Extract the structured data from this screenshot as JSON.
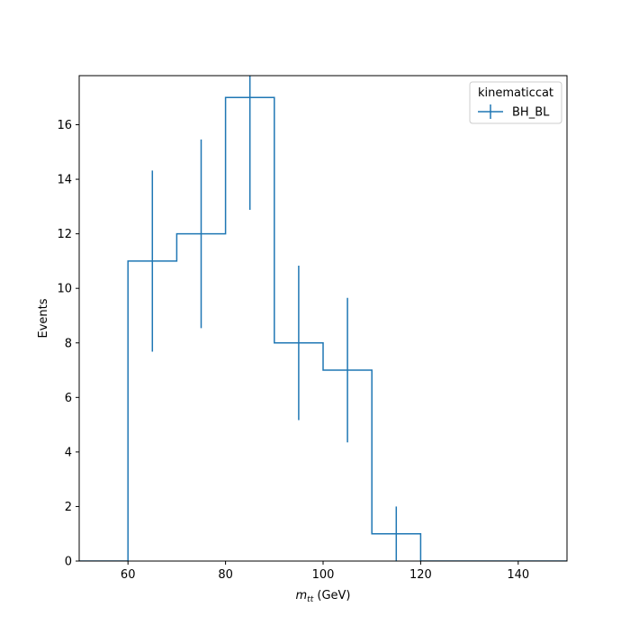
{
  "chart_data": {
    "type": "step",
    "xlabel_main": "m",
    "xlabel_sub": "tt",
    "xlabel_unit": " (GeV)",
    "ylabel": "Events",
    "xlim": [
      50,
      150
    ],
    "ylim": [
      0,
      17.8
    ],
    "xticks": [
      60,
      80,
      100,
      120,
      140
    ],
    "yticks": [
      0,
      2,
      4,
      6,
      8,
      10,
      12,
      14,
      16
    ],
    "grid": false,
    "legend": {
      "title": "kinematiccat",
      "placement": "top-right",
      "entries": [
        "BH_BL"
      ]
    },
    "series": [
      {
        "name": "BH_BL",
        "color": "#1f77b4",
        "bin_edges": [
          50,
          60,
          70,
          80,
          90,
          100,
          110,
          120,
          130,
          140,
          150
        ],
        "values": [
          0,
          11,
          12,
          17,
          8,
          7,
          1,
          0,
          0,
          0
        ],
        "errors": [
          0,
          3.32,
          3.46,
          4.12,
          2.83,
          2.65,
          1.0,
          0,
          0,
          0
        ]
      }
    ]
  }
}
